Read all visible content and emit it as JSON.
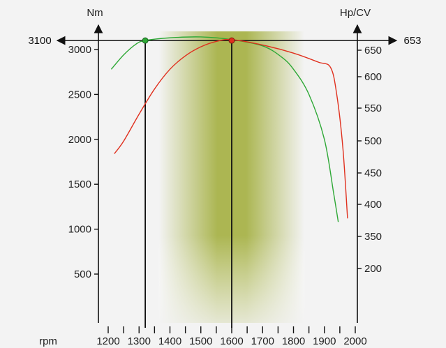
{
  "chart_data": {
    "type": "line",
    "title": "",
    "xlabel": "rpm",
    "ylabel_left": "Nm",
    "ylabel_right": "Hp/CV",
    "x_ticks": [
      1200,
      1300,
      1400,
      1500,
      1600,
      1700,
      1800,
      1900,
      2000
    ],
    "x_range": [
      1120,
      2000
    ],
    "left_ticks": [
      500,
      1000,
      1500,
      2000,
      2500,
      3000
    ],
    "left_range": [
      0,
      3100
    ],
    "right_ticks": [
      200,
      350,
      400,
      450,
      500,
      550,
      600,
      650
    ],
    "right_axis_note": "right-hand scale is non-uniform (200 is drawn near the 500 Nm level)",
    "highlight_band": {
      "from_rpm": 1500,
      "to_rpm": 1700,
      "color": "#a8b34a"
    },
    "peak_torque": {
      "value": 3100,
      "label": "3100",
      "rpm": 1320
    },
    "peak_power": {
      "value": 653,
      "label": "653",
      "rpm": 1600
    },
    "colors": {
      "torque": "#2ea836",
      "power": "#e0301e",
      "axis": "#111111"
    },
    "series": [
      {
        "id": "torque",
        "axis": "left",
        "unit": "Nm",
        "points": [
          [
            1210,
            2780
          ],
          [
            1250,
            2940
          ],
          [
            1290,
            3060
          ],
          [
            1320,
            3100
          ],
          [
            1400,
            3130
          ],
          [
            1500,
            3140
          ],
          [
            1600,
            3110
          ],
          [
            1700,
            3040
          ],
          [
            1760,
            2920
          ],
          [
            1800,
            2780
          ],
          [
            1850,
            2500
          ],
          [
            1900,
            2000
          ],
          [
            1930,
            1400
          ],
          [
            1945,
            1080
          ]
        ]
      },
      {
        "id": "power",
        "axis": "left",
        "unit": "Hp/CV (plotted on torque scale)",
        "points": [
          [
            1220,
            1840
          ],
          [
            1250,
            1980
          ],
          [
            1300,
            2280
          ],
          [
            1350,
            2560
          ],
          [
            1400,
            2780
          ],
          [
            1450,
            2930
          ],
          [
            1500,
            3030
          ],
          [
            1550,
            3090
          ],
          [
            1600,
            3110
          ],
          [
            1700,
            3050
          ],
          [
            1800,
            2960
          ],
          [
            1880,
            2860
          ],
          [
            1920,
            2800
          ],
          [
            1940,
            2500
          ],
          [
            1960,
            1900
          ],
          [
            1975,
            1120
          ]
        ]
      }
    ]
  }
}
